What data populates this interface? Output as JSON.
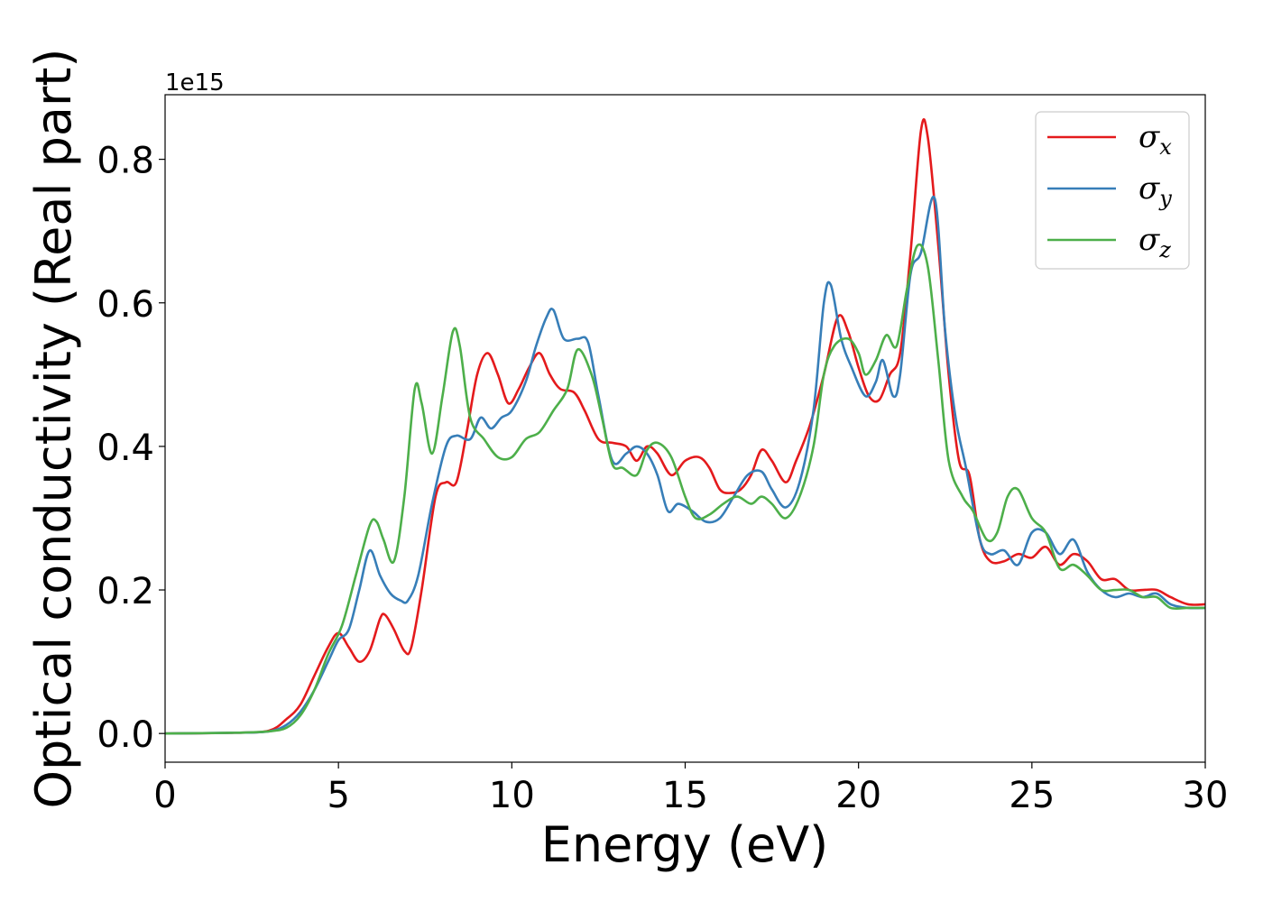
{
  "chart_data": {
    "type": "line",
    "xlabel": "Energy (eV)",
    "ylabel": "Optical conductivity (Real part)",
    "y_offset_label": "1e15",
    "xlim": [
      0,
      30
    ],
    "ylim": [
      -0.04,
      0.89
    ],
    "x_ticks": [
      0,
      5,
      10,
      15,
      20,
      25,
      30
    ],
    "x_tick_labels": [
      "0",
      "5",
      "10",
      "15",
      "20",
      "25",
      "30"
    ],
    "y_ticks": [
      0.0,
      0.2,
      0.4,
      0.6,
      0.8
    ],
    "y_tick_labels": [
      "0.0",
      "0.2",
      "0.4",
      "0.6",
      "0.8"
    ],
    "grid": false,
    "legend_position": "top-right",
    "series": [
      {
        "name": "σx",
        "symbol": "σ",
        "subscript": "x",
        "color": "#e41a1c",
        "points": [
          [
            0,
            0
          ],
          [
            2,
            0.001
          ],
          [
            3,
            0.004
          ],
          [
            3.5,
            0.02
          ],
          [
            3.9,
            0.04
          ],
          [
            4.3,
            0.08
          ],
          [
            4.7,
            0.12
          ],
          [
            5.0,
            0.14
          ],
          [
            5.3,
            0.12
          ],
          [
            5.6,
            0.1
          ],
          [
            5.9,
            0.115
          ],
          [
            6.2,
            0.16
          ],
          [
            6.35,
            0.165
          ],
          [
            6.6,
            0.145
          ],
          [
            6.9,
            0.115
          ],
          [
            7.1,
            0.12
          ],
          [
            7.4,
            0.2
          ],
          [
            7.8,
            0.33
          ],
          [
            8.1,
            0.35
          ],
          [
            8.4,
            0.35
          ],
          [
            8.7,
            0.42
          ],
          [
            9.0,
            0.5
          ],
          [
            9.3,
            0.53
          ],
          [
            9.6,
            0.5
          ],
          [
            9.9,
            0.46
          ],
          [
            10.2,
            0.48
          ],
          [
            10.5,
            0.51
          ],
          [
            10.8,
            0.53
          ],
          [
            11.1,
            0.5
          ],
          [
            11.4,
            0.48
          ],
          [
            11.8,
            0.475
          ],
          [
            12.1,
            0.45
          ],
          [
            12.5,
            0.41
          ],
          [
            12.9,
            0.405
          ],
          [
            13.3,
            0.4
          ],
          [
            13.6,
            0.38
          ],
          [
            13.9,
            0.4
          ],
          [
            14.2,
            0.39
          ],
          [
            14.6,
            0.36
          ],
          [
            15.0,
            0.38
          ],
          [
            15.4,
            0.385
          ],
          [
            15.7,
            0.37
          ],
          [
            16.0,
            0.34
          ],
          [
            16.3,
            0.335
          ],
          [
            16.6,
            0.34
          ],
          [
            16.9,
            0.36
          ],
          [
            17.2,
            0.395
          ],
          [
            17.5,
            0.38
          ],
          [
            17.9,
            0.35
          ],
          [
            18.2,
            0.38
          ],
          [
            18.6,
            0.43
          ],
          [
            19.0,
            0.5
          ],
          [
            19.4,
            0.58
          ],
          [
            19.7,
            0.56
          ],
          [
            20.0,
            0.51
          ],
          [
            20.3,
            0.47
          ],
          [
            20.6,
            0.465
          ],
          [
            20.9,
            0.5
          ],
          [
            21.2,
            0.53
          ],
          [
            21.5,
            0.67
          ],
          [
            21.8,
            0.84
          ],
          [
            22.0,
            0.83
          ],
          [
            22.3,
            0.68
          ],
          [
            22.6,
            0.5
          ],
          [
            22.9,
            0.38
          ],
          [
            23.2,
            0.36
          ],
          [
            23.5,
            0.27
          ],
          [
            23.8,
            0.24
          ],
          [
            24.2,
            0.24
          ],
          [
            24.6,
            0.25
          ],
          [
            25.0,
            0.245
          ],
          [
            25.4,
            0.26
          ],
          [
            25.8,
            0.235
          ],
          [
            26.2,
            0.25
          ],
          [
            26.6,
            0.24
          ],
          [
            27.0,
            0.215
          ],
          [
            27.4,
            0.215
          ],
          [
            27.8,
            0.2
          ],
          [
            28.2,
            0.2
          ],
          [
            28.6,
            0.2
          ],
          [
            29.0,
            0.19
          ],
          [
            29.5,
            0.18
          ],
          [
            30.0,
            0.18
          ]
        ]
      },
      {
        "name": "σy",
        "symbol": "σ",
        "subscript": "y",
        "color": "#377eb8",
        "points": [
          [
            0,
            0
          ],
          [
            2,
            0.001
          ],
          [
            3,
            0.003
          ],
          [
            3.5,
            0.012
          ],
          [
            3.9,
            0.03
          ],
          [
            4.3,
            0.06
          ],
          [
            4.7,
            0.1
          ],
          [
            5.0,
            0.13
          ],
          [
            5.3,
            0.145
          ],
          [
            5.6,
            0.2
          ],
          [
            5.9,
            0.255
          ],
          [
            6.2,
            0.22
          ],
          [
            6.5,
            0.195
          ],
          [
            6.8,
            0.185
          ],
          [
            7.0,
            0.185
          ],
          [
            7.3,
            0.22
          ],
          [
            7.7,
            0.32
          ],
          [
            8.1,
            0.4
          ],
          [
            8.4,
            0.415
          ],
          [
            8.8,
            0.41
          ],
          [
            9.1,
            0.44
          ],
          [
            9.4,
            0.425
          ],
          [
            9.7,
            0.44
          ],
          [
            10.0,
            0.45
          ],
          [
            10.4,
            0.49
          ],
          [
            10.7,
            0.54
          ],
          [
            11.0,
            0.58
          ],
          [
            11.2,
            0.59
          ],
          [
            11.5,
            0.55
          ],
          [
            11.9,
            0.55
          ],
          [
            12.2,
            0.545
          ],
          [
            12.5,
            0.47
          ],
          [
            12.9,
            0.38
          ],
          [
            13.3,
            0.39
          ],
          [
            13.6,
            0.4
          ],
          [
            13.9,
            0.39
          ],
          [
            14.2,
            0.36
          ],
          [
            14.5,
            0.31
          ],
          [
            14.8,
            0.32
          ],
          [
            15.2,
            0.31
          ],
          [
            15.6,
            0.295
          ],
          [
            16.0,
            0.3
          ],
          [
            16.4,
            0.33
          ],
          [
            16.8,
            0.36
          ],
          [
            17.2,
            0.365
          ],
          [
            17.5,
            0.34
          ],
          [
            17.9,
            0.315
          ],
          [
            18.3,
            0.35
          ],
          [
            18.7,
            0.45
          ],
          [
            19.0,
            0.6
          ],
          [
            19.2,
            0.625
          ],
          [
            19.5,
            0.55
          ],
          [
            19.8,
            0.51
          ],
          [
            20.2,
            0.47
          ],
          [
            20.5,
            0.49
          ],
          [
            20.7,
            0.52
          ],
          [
            21.0,
            0.47
          ],
          [
            21.2,
            0.5
          ],
          [
            21.5,
            0.64
          ],
          [
            21.8,
            0.67
          ],
          [
            22.2,
            0.745
          ],
          [
            22.5,
            0.56
          ],
          [
            22.8,
            0.44
          ],
          [
            23.1,
            0.37
          ],
          [
            23.5,
            0.27
          ],
          [
            23.8,
            0.25
          ],
          [
            24.2,
            0.255
          ],
          [
            24.6,
            0.235
          ],
          [
            25.0,
            0.28
          ],
          [
            25.4,
            0.28
          ],
          [
            25.8,
            0.25
          ],
          [
            26.2,
            0.27
          ],
          [
            26.6,
            0.225
          ],
          [
            27.0,
            0.2
          ],
          [
            27.4,
            0.19
          ],
          [
            27.8,
            0.195
          ],
          [
            28.2,
            0.19
          ],
          [
            28.6,
            0.195
          ],
          [
            29.0,
            0.18
          ],
          [
            29.5,
            0.175
          ],
          [
            30.0,
            0.175
          ]
        ]
      },
      {
        "name": "σz",
        "symbol": "σ",
        "subscript": "z",
        "color": "#4daf4a",
        "points": [
          [
            0,
            0
          ],
          [
            2,
            0.001
          ],
          [
            3,
            0.003
          ],
          [
            3.5,
            0.008
          ],
          [
            3.9,
            0.025
          ],
          [
            4.3,
            0.06
          ],
          [
            4.7,
            0.11
          ],
          [
            5.1,
            0.15
          ],
          [
            5.5,
            0.22
          ],
          [
            5.9,
            0.29
          ],
          [
            6.1,
            0.295
          ],
          [
            6.3,
            0.27
          ],
          [
            6.6,
            0.24
          ],
          [
            6.9,
            0.33
          ],
          [
            7.2,
            0.48
          ],
          [
            7.4,
            0.46
          ],
          [
            7.7,
            0.39
          ],
          [
            8.0,
            0.47
          ],
          [
            8.3,
            0.56
          ],
          [
            8.5,
            0.54
          ],
          [
            8.8,
            0.44
          ],
          [
            9.2,
            0.41
          ],
          [
            9.6,
            0.385
          ],
          [
            10.0,
            0.385
          ],
          [
            10.4,
            0.41
          ],
          [
            10.8,
            0.42
          ],
          [
            11.2,
            0.45
          ],
          [
            11.6,
            0.48
          ],
          [
            11.9,
            0.535
          ],
          [
            12.3,
            0.5
          ],
          [
            12.6,
            0.44
          ],
          [
            12.9,
            0.375
          ],
          [
            13.2,
            0.37
          ],
          [
            13.6,
            0.36
          ],
          [
            13.9,
            0.395
          ],
          [
            14.2,
            0.405
          ],
          [
            14.6,
            0.385
          ],
          [
            15.0,
            0.33
          ],
          [
            15.3,
            0.3
          ],
          [
            15.7,
            0.305
          ],
          [
            16.1,
            0.32
          ],
          [
            16.5,
            0.33
          ],
          [
            16.9,
            0.32
          ],
          [
            17.2,
            0.33
          ],
          [
            17.5,
            0.32
          ],
          [
            17.9,
            0.3
          ],
          [
            18.3,
            0.33
          ],
          [
            18.7,
            0.4
          ],
          [
            19.0,
            0.5
          ],
          [
            19.3,
            0.54
          ],
          [
            19.7,
            0.55
          ],
          [
            20.0,
            0.53
          ],
          [
            20.2,
            0.5
          ],
          [
            20.5,
            0.52
          ],
          [
            20.8,
            0.555
          ],
          [
            21.1,
            0.54
          ],
          [
            21.4,
            0.62
          ],
          [
            21.7,
            0.68
          ],
          [
            22.0,
            0.65
          ],
          [
            22.3,
            0.52
          ],
          [
            22.6,
            0.38
          ],
          [
            23.0,
            0.33
          ],
          [
            23.3,
            0.31
          ],
          [
            23.7,
            0.27
          ],
          [
            24.0,
            0.28
          ],
          [
            24.3,
            0.33
          ],
          [
            24.6,
            0.34
          ],
          [
            25.0,
            0.3
          ],
          [
            25.4,
            0.28
          ],
          [
            25.8,
            0.23
          ],
          [
            26.2,
            0.235
          ],
          [
            26.6,
            0.22
          ],
          [
            27.0,
            0.2
          ],
          [
            27.4,
            0.2
          ],
          [
            27.8,
            0.2
          ],
          [
            28.2,
            0.19
          ],
          [
            28.6,
            0.19
          ],
          [
            29.0,
            0.175
          ],
          [
            29.5,
            0.175
          ],
          [
            30.0,
            0.175
          ]
        ]
      }
    ]
  }
}
